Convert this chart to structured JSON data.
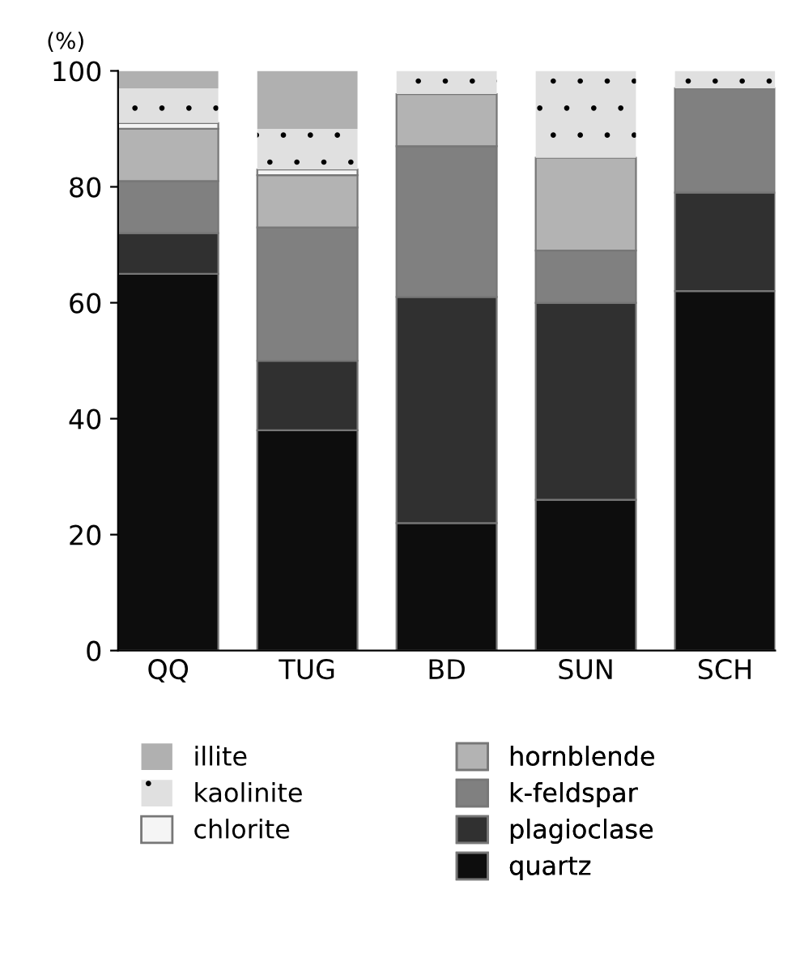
{
  "chart_data": {
    "type": "bar",
    "stacked": true,
    "ylabel": "(%)",
    "categories": [
      "QQ",
      "TUG",
      "BD",
      "SUN",
      "SCH"
    ],
    "series": [
      {
        "name": "quartz",
        "color": "#0d0d0d",
        "values": [
          65,
          38,
          22,
          26,
          62
        ]
      },
      {
        "name": "plagioclase",
        "color": "#303030",
        "values": [
          7,
          12,
          39,
          34,
          17
        ]
      },
      {
        "name": "k-feldspar",
        "color": "#808080",
        "values": [
          9,
          23,
          26,
          9,
          18
        ]
      },
      {
        "name": "hornblende",
        "color": "#b3b3b3",
        "values": [
          9,
          9,
          9,
          16,
          0
        ]
      },
      {
        "name": "chlorite",
        "color": "#f5f5f5",
        "values": [
          1,
          1,
          0,
          0,
          0
        ]
      },
      {
        "name": "kaolinite",
        "color": "#e0e0e0",
        "values": [
          6,
          7,
          4,
          15,
          3
        ]
      },
      {
        "name": "illite",
        "color": "#b0b0b0",
        "values": [
          3,
          10,
          0,
          0,
          0
        ]
      }
    ],
    "ylim": [
      0,
      100
    ],
    "yticks": [
      0,
      20,
      40,
      60,
      80,
      100
    ],
    "grid": false,
    "legend": "bottom"
  }
}
